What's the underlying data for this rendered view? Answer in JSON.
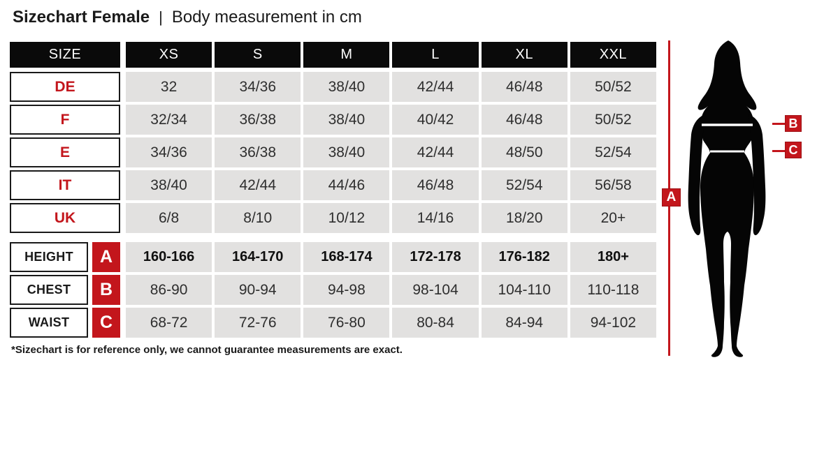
{
  "title": {
    "main": "Sizechart Female",
    "separator": "|",
    "subtitle": "Body measurement in cm"
  },
  "table": {
    "size_header": "SIZE",
    "columns": [
      "XS",
      "S",
      "M",
      "L",
      "XL",
      "XXL"
    ],
    "size_rows": [
      {
        "label": "DE",
        "values": [
          "32",
          "34/36",
          "38/40",
          "42/44",
          "46/48",
          "50/52"
        ]
      },
      {
        "label": "F",
        "values": [
          "32/34",
          "36/38",
          "38/40",
          "40/42",
          "46/48",
          "50/52"
        ]
      },
      {
        "label": "E",
        "values": [
          "34/36",
          "36/38",
          "38/40",
          "42/44",
          "48/50",
          "52/54"
        ]
      },
      {
        "label": "IT",
        "values": [
          "38/40",
          "42/44",
          "44/46",
          "46/48",
          "52/54",
          "56/58"
        ]
      },
      {
        "label": "UK",
        "values": [
          "6/8",
          "8/10",
          "10/12",
          "14/16",
          "18/20",
          "20+"
        ]
      }
    ],
    "measurement_rows": [
      {
        "label": "HEIGHT",
        "marker": "A",
        "bold": true,
        "values": [
          "160-166",
          "164-170",
          "168-174",
          "172-178",
          "176-182",
          "180+"
        ]
      },
      {
        "label": "CHEST",
        "marker": "B",
        "bold": false,
        "values": [
          "86-90",
          "90-94",
          "94-98",
          "98-104",
          "104-110",
          "110-118"
        ]
      },
      {
        "label": "WAIST",
        "marker": "C",
        "bold": false,
        "values": [
          "68-72",
          "72-76",
          "76-80",
          "80-84",
          "84-94",
          "94-102"
        ]
      }
    ]
  },
  "figure": {
    "marker_a": "A",
    "marker_b": "B",
    "marker_c": "C"
  },
  "footnote": "*Sizechart is for reference only, we cannot guarantee measurements are exact.",
  "colors": {
    "accent_red": "#c3161c",
    "header_black": "#0a0a0a",
    "cell_gray": "#e2e1e0"
  }
}
